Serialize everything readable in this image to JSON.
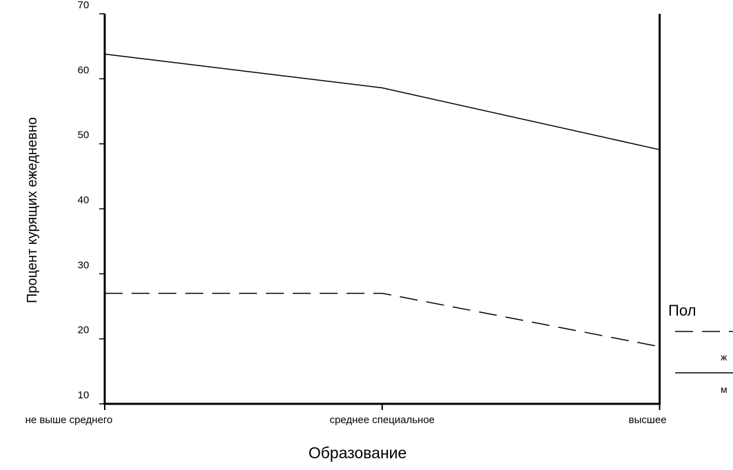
{
  "chart_data": {
    "type": "line",
    "title": "",
    "xlabel": "Образование",
    "ylabel": "Процент курящих ежедневно",
    "categories": [
      "не выше среднего",
      "среднее специальное",
      "высшее"
    ],
    "ylim": [
      10,
      70
    ],
    "yticks": [
      10,
      20,
      30,
      40,
      50,
      60,
      70
    ],
    "grid": false,
    "legend_title": "Пол",
    "legend_position": "right",
    "series": [
      {
        "name": "ж",
        "values": [
          27.0,
          27.0,
          18.8
        ],
        "style": "dashed",
        "color": "#000000"
      },
      {
        "name": "м",
        "values": [
          63.8,
          58.6,
          49.1
        ],
        "style": "solid",
        "color": "#000000"
      }
    ]
  }
}
